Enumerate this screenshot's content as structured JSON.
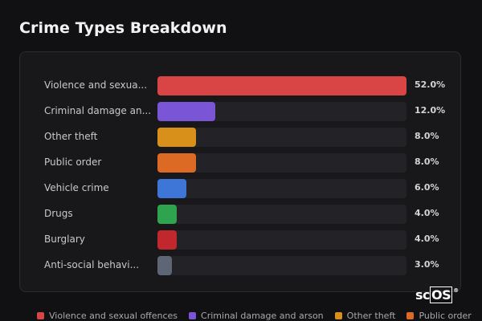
{
  "title": "Crime Types Breakdown",
  "logo": {
    "prefix": "sc",
    "boxed": "OS",
    "mark": "®"
  },
  "chart_data": {
    "type": "bar",
    "orientation": "horizontal",
    "title": "Crime Types Breakdown",
    "categories": [
      "Violence and sexua...",
      "Criminal damage an...",
      "Other theft",
      "Public order",
      "Vehicle crime",
      "Drugs",
      "Burglary",
      "Anti-social behavi..."
    ],
    "values": [
      52.0,
      12.0,
      8.0,
      8.0,
      6.0,
      4.0,
      4.0,
      3.0
    ],
    "value_labels": [
      "52.0%",
      "12.0%",
      "8.0%",
      "8.0%",
      "6.0%",
      "4.0%",
      "4.0%",
      "3.0%"
    ],
    "colors": [
      "#d94545",
      "#7a55d6",
      "#d9901a",
      "#dd6a24",
      "#3d76d6",
      "#2ea44f",
      "#c0282d",
      "#5e6676"
    ],
    "xlim": [
      0,
      52
    ],
    "grid": false,
    "legend": {
      "position": "bottom",
      "entries": [
        {
          "label": "Violence and sexual offences",
          "color": "#d94545"
        },
        {
          "label": "Criminal damage and arson",
          "color": "#7a55d6"
        },
        {
          "label": "Other theft",
          "color": "#d9901a"
        },
        {
          "label": "Public order",
          "color": "#dd6a24"
        }
      ]
    }
  }
}
